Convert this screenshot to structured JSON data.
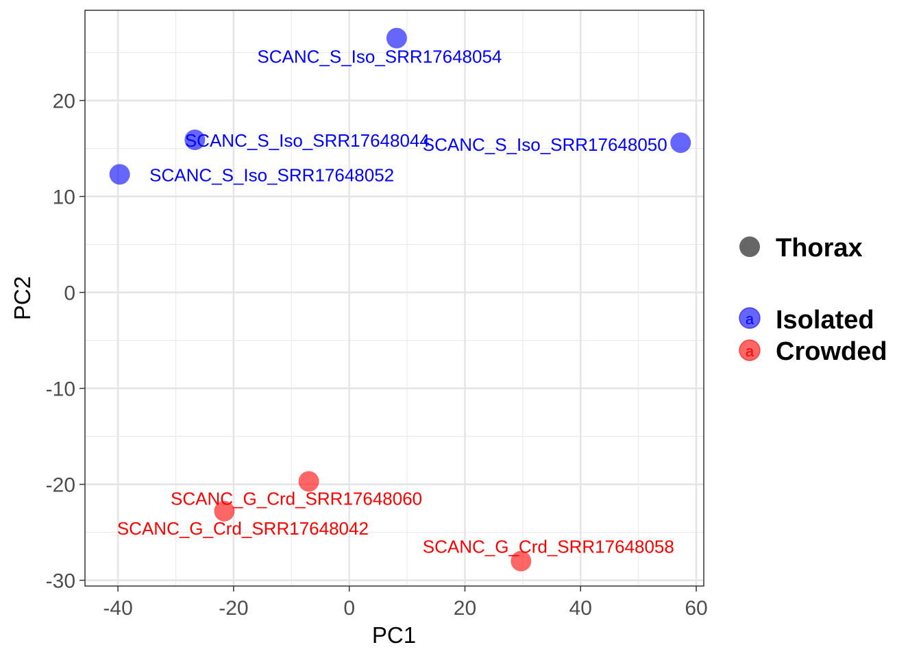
{
  "chart_data": {
    "type": "scatter",
    "xlabel": "PC1",
    "ylabel": "PC2",
    "xlim": [
      -45.7,
      61.3
    ],
    "ylim": [
      -30.6,
      29.4
    ],
    "x_ticks": [
      -40,
      -20,
      0,
      20,
      40,
      60
    ],
    "y_ticks": [
      -30,
      -20,
      -10,
      0,
      10,
      20
    ],
    "grid": true,
    "legend_position": "right",
    "legend": {
      "shape_title": "Thorax",
      "groups": [
        {
          "name": "Isolated",
          "color": "#0000FF"
        },
        {
          "name": "Crowded",
          "color": "#FF0000"
        }
      ],
      "key_glyph": "a"
    },
    "series": [
      {
        "name": "Isolated",
        "color": "#0000FF",
        "points": [
          {
            "label": "SCANC_S_Iso_SRR17648054",
            "x": 8.2,
            "y": 26.5
          },
          {
            "label": "SCANC_S_Iso_SRR17648044",
            "x": -26.7,
            "y": 15.9
          },
          {
            "label": "SCANC_S_Iso_SRR17648050",
            "x": 57.3,
            "y": 15.6
          },
          {
            "label": "SCANC_S_Iso_SRR17648052",
            "x": -39.7,
            "y": 12.3
          }
        ]
      },
      {
        "name": "Crowded",
        "color": "#FF0000",
        "points": [
          {
            "label": "SCANC_G_Crd_SRR17648060",
            "x": -7.0,
            "y": -19.7
          },
          {
            "label": "SCANC_G_Crd_SRR17648042",
            "x": -21.6,
            "y": -22.8
          },
          {
            "label": "SCANC_G_Crd_SRR17648058",
            "x": 29.7,
            "y": -28.0
          }
        ]
      }
    ]
  }
}
